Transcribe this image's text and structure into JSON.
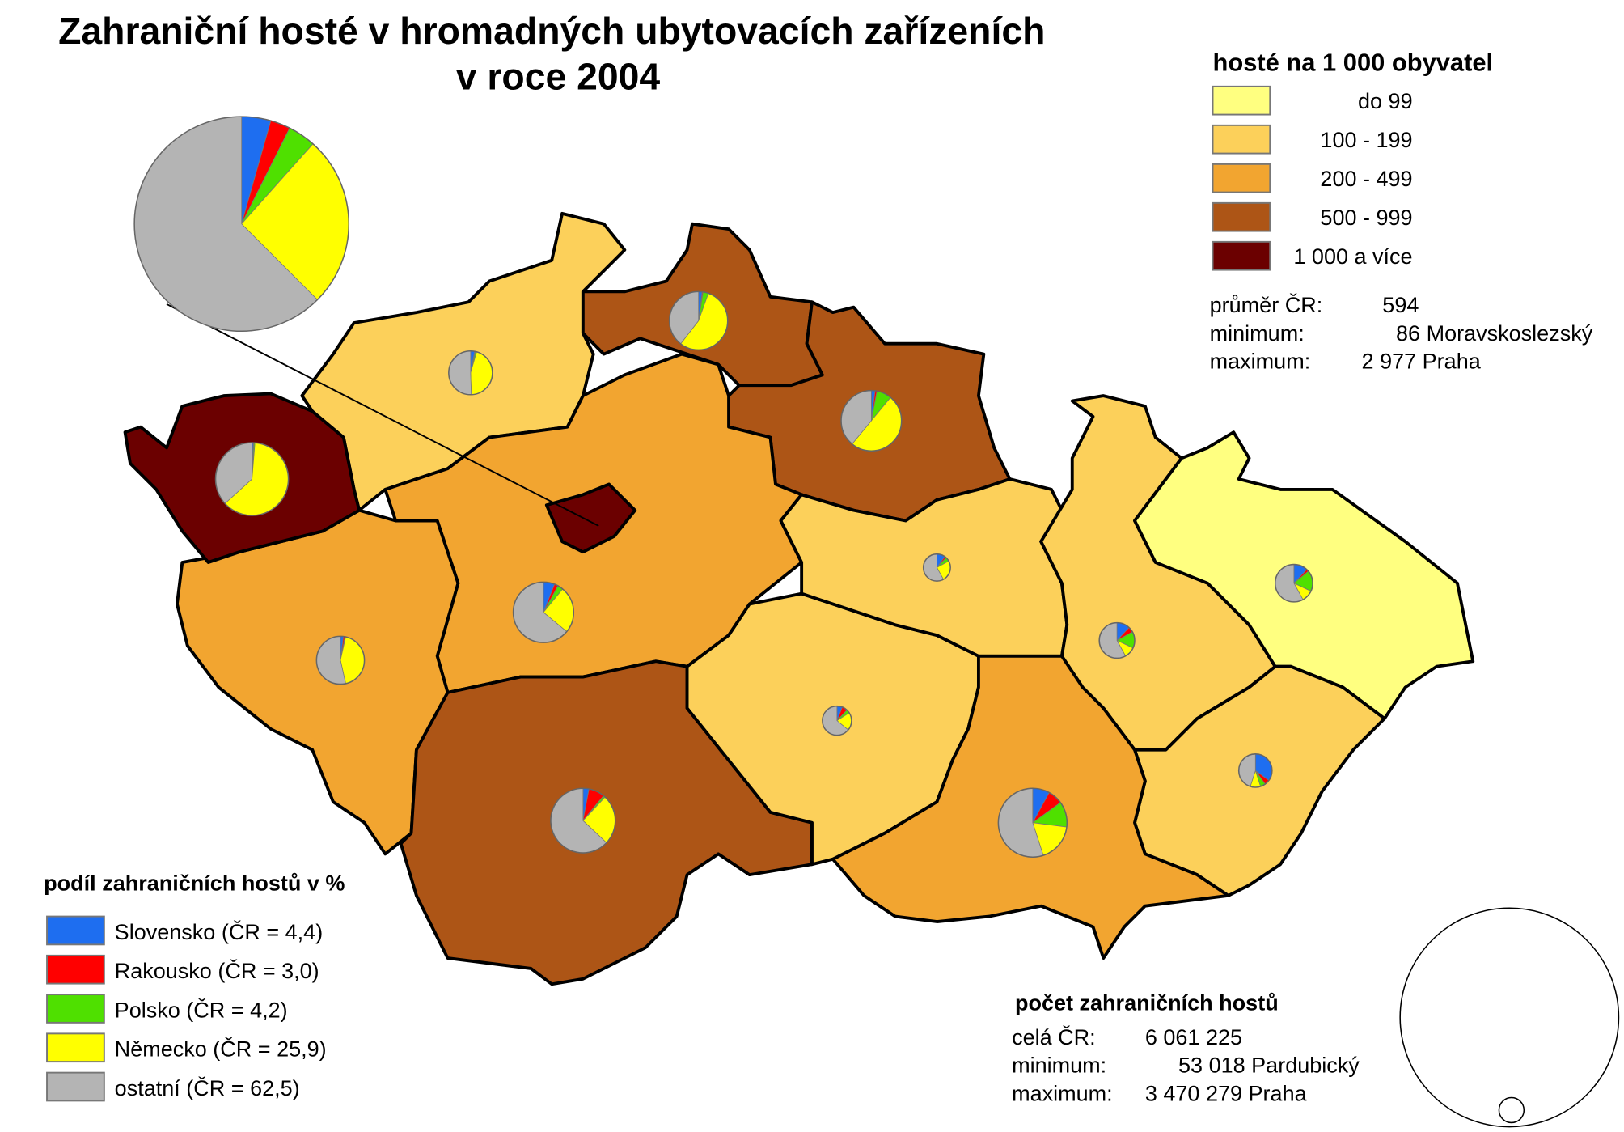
{
  "title": {
    "line1": "Zahraniční hosté v hromadných ubytovacích zařízeních",
    "line2": "v roce 2004"
  },
  "density_legend": {
    "title": "hosté na 1 000 obyvatel",
    "classes": [
      {
        "label": "do 99",
        "color": "#FFFF80"
      },
      {
        "label": "100 - 199",
        "color": "#FCD05A"
      },
      {
        "label": "200 - 499",
        "color": "#F2A530"
      },
      {
        "label": "500 - 999",
        "color": "#AD5516"
      },
      {
        "label": "1 000 a více",
        "color": "#6B0000"
      }
    ],
    "stats": [
      {
        "label": "průměr ČR:",
        "value": "594"
      },
      {
        "label": "minimum:",
        "value": "86 Moravskoslezský"
      },
      {
        "label": "maximum:",
        "value": "2 977 Praha"
      }
    ]
  },
  "share_legend": {
    "title": "podíl zahraničních hostů v %",
    "items": [
      {
        "label": "Slovensko (ČR = 4,4)",
        "color": "#1E6EF0"
      },
      {
        "label": "Rakousko (ČR = 3,0)",
        "color": "#FF0000"
      },
      {
        "label": "Polsko (ČR = 4,2)",
        "color": "#4FE000"
      },
      {
        "label": "Německo (ČR = 25,9)",
        "color": "#FFFF00"
      },
      {
        "label": "ostatní (ČR = 62,5)",
        "color": "#B4B4B4"
      }
    ]
  },
  "count_legend": {
    "title": "počet zahraničních hostů",
    "stats": [
      {
        "label": "celá ČR:",
        "value": "6 061 225"
      },
      {
        "label": "minimum:",
        "value": "53 018 Pardubický"
      },
      {
        "label": "maximum:",
        "value": "3 470 279 Praha"
      }
    ]
  },
  "chart_data": {
    "type": "choropleth-with-pies",
    "pie_order": [
      "Slovensko",
      "Rakousko",
      "Polsko",
      "Německo",
      "ostatní"
    ],
    "cr_pie": [
      4.4,
      3.0,
      4.2,
      25.9,
      62.5
    ],
    "regions": [
      {
        "id": "karlovarsky",
        "class": 4,
        "pie": [
          0.5,
          0.3,
          0.5,
          62,
          36.7
        ]
      },
      {
        "id": "ustecky",
        "class": 1,
        "pie": [
          3,
          0.5,
          1,
          45,
          50.5
        ]
      },
      {
        "id": "liberecky",
        "class": 3,
        "pie": [
          2,
          0.5,
          3,
          55,
          39.5
        ]
      },
      {
        "id": "kralovehradecky",
        "class": 3,
        "pie": [
          2,
          1,
          8,
          50,
          39
        ]
      },
      {
        "id": "stredocesky",
        "class": 2,
        "pie": [
          6,
          2,
          3,
          25,
          64
        ]
      },
      {
        "id": "praha",
        "class": 4,
        "pie": null
      },
      {
        "id": "plzensky",
        "class": 2,
        "pie": [
          2,
          1,
          0.5,
          43,
          53.5
        ]
      },
      {
        "id": "jihocesky",
        "class": 3,
        "pie": [
          3,
          8,
          1,
          25,
          63
        ]
      },
      {
        "id": "vysocina",
        "class": 1,
        "pie": [
          6,
          6,
          4,
          20,
          64
        ]
      },
      {
        "id": "pardubicky",
        "class": 1,
        "pie": [
          10,
          2,
          5,
          25,
          58
        ]
      },
      {
        "id": "olomoucky",
        "class": 1,
        "pie": [
          12,
          5,
          15,
          10,
          58
        ]
      },
      {
        "id": "moravskoslezsky",
        "class": 0,
        "pie": [
          12,
          2,
          18,
          10,
          58
        ]
      },
      {
        "id": "zlinsky",
        "class": 1,
        "pie": [
          35,
          5,
          5,
          10,
          45
        ]
      },
      {
        "id": "jihomoravsky",
        "class": 2,
        "pie": [
          8,
          7,
          12,
          18,
          55
        ]
      }
    ]
  }
}
